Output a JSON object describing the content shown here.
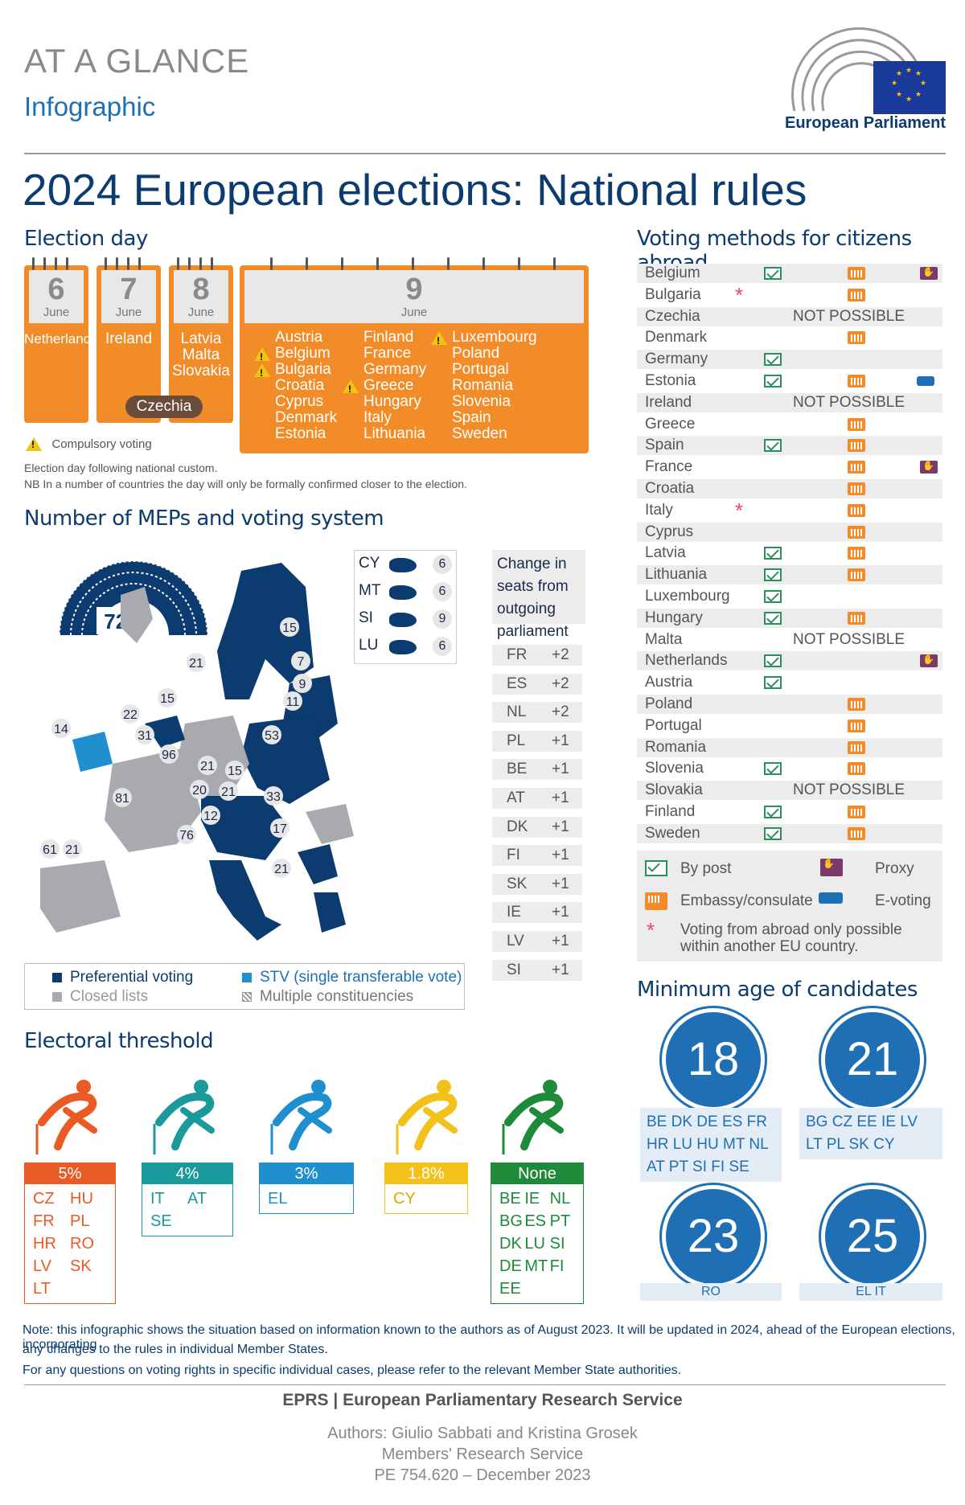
{
  "header": {
    "kicker": "AT A GLANCE",
    "subtitle": "Infographic",
    "logo_text": "European Parliament",
    "title": "2024 European elections: National rules"
  },
  "election_day": {
    "title": "Election day",
    "days": [
      {
        "day": "6",
        "month": "June",
        "countries": [
          "Netherlands"
        ]
      },
      {
        "day": "7",
        "month": "June",
        "countries": [
          "Ireland"
        ],
        "extra": "Czechia"
      },
      {
        "day": "8",
        "month": "June",
        "countries": [
          "Latvia",
          "Malta",
          "Slovakia"
        ]
      },
      {
        "day": "9",
        "month": "June",
        "col1": [
          "Austria",
          "Belgium",
          "Bulgaria",
          "Croatia",
          "Cyprus",
          "Denmark",
          "Estonia"
        ],
        "col2": [
          "Finland",
          "France",
          "Germany",
          "Greece",
          "Hungary",
          "Italy",
          "Lithuania"
        ],
        "col3": [
          "Luxembourg",
          "Poland",
          "Portugal",
          "Romania",
          "Slovenia",
          "Spain",
          "Sweden"
        ]
      }
    ],
    "legend_compulsory": "Compulsory voting",
    "note1": "Election day following national custom.",
    "note2": "NB In a number of countries the day will only be formally confirmed closer to the election."
  },
  "meps": {
    "title": "Number of MEPs and voting system",
    "total": "720",
    "map_numbers": [
      "15",
      "21",
      "7",
      "9",
      "11",
      "15",
      "22",
      "14",
      "31",
      "53",
      "96",
      "21",
      "15",
      "20",
      "21",
      "33",
      "81",
      "12",
      "17",
      "76",
      "21",
      "61",
      "21"
    ],
    "small_states": [
      {
        "code": "CY",
        "seats": "6"
      },
      {
        "code": "MT",
        "seats": "6"
      },
      {
        "code": "SI",
        "seats": "9"
      },
      {
        "code": "LU",
        "seats": "6"
      }
    ],
    "change_title": "Change in seats from outgoing parliament",
    "changes": [
      {
        "code": "FR",
        "delta": "+2"
      },
      {
        "code": "ES",
        "delta": "+2"
      },
      {
        "code": "NL",
        "delta": "+2"
      },
      {
        "code": "PL",
        "delta": "+1"
      },
      {
        "code": "BE",
        "delta": "+1"
      },
      {
        "code": "AT",
        "delta": "+1"
      },
      {
        "code": "DK",
        "delta": "+1"
      },
      {
        "code": "FI",
        "delta": "+1"
      },
      {
        "code": "SK",
        "delta": "+1"
      },
      {
        "code": "IE",
        "delta": "+1"
      },
      {
        "code": "LV",
        "delta": "+1"
      },
      {
        "code": "SI",
        "delta": "+1"
      }
    ],
    "legend": {
      "preferential": "Preferential voting",
      "closed": "Closed lists",
      "stv": "STV (single transferable vote)",
      "multiple": "Multiple constituencies"
    }
  },
  "abroad": {
    "title": "Voting methods for citizens abroad",
    "not_possible": "NOT POSSIBLE",
    "rows": [
      {
        "country": "Belgium",
        "post": true,
        "embassy": true,
        "proxy": true
      },
      {
        "country": "Bulgaria",
        "star": true,
        "embassy": true
      },
      {
        "country": "Czechia",
        "np": true
      },
      {
        "country": "Denmark",
        "embassy": true
      },
      {
        "country": "Germany",
        "post": true
      },
      {
        "country": "Estonia",
        "post": true,
        "embassy": true,
        "evote": true
      },
      {
        "country": "Ireland",
        "np": true
      },
      {
        "country": "Greece",
        "embassy": true
      },
      {
        "country": "Spain",
        "post": true,
        "embassy": true
      },
      {
        "country": "France",
        "embassy": true,
        "proxy": true
      },
      {
        "country": "Croatia",
        "embassy": true
      },
      {
        "country": "Italy",
        "star": true,
        "embassy": true
      },
      {
        "country": "Cyprus",
        "embassy": true
      },
      {
        "country": "Latvia",
        "post": true,
        "embassy": true
      },
      {
        "country": "Lithuania",
        "post": true,
        "embassy": true
      },
      {
        "country": "Luxembourg",
        "post": true
      },
      {
        "country": "Hungary",
        "post": true,
        "embassy": true
      },
      {
        "country": "Malta",
        "np": true
      },
      {
        "country": "Netherlands",
        "post": true,
        "proxy": true
      },
      {
        "country": "Austria",
        "post": true
      },
      {
        "country": "Poland",
        "embassy": true
      },
      {
        "country": "Portugal",
        "embassy": true
      },
      {
        "country": "Romania",
        "embassy": true
      },
      {
        "country": "Slovenia",
        "post": true,
        "embassy": true
      },
      {
        "country": "Slovakia",
        "np": true
      },
      {
        "country": "Finland",
        "post": true,
        "embassy": true
      },
      {
        "country": "Sweden",
        "post": true,
        "embassy": true
      }
    ],
    "legend": {
      "post": "By post",
      "proxy": "Proxy",
      "embassy": "Embassy/consulate",
      "evote": "E-voting",
      "star": "Voting from abroad only possible within another EU country."
    }
  },
  "threshold": {
    "title": "Electoral threshold",
    "groups": [
      {
        "label": "5%",
        "color": "#ea5a25",
        "items": [
          "CZ",
          "HU",
          "FR",
          "PL",
          "HR",
          "RO",
          "LV",
          "SK",
          "LT"
        ]
      },
      {
        "label": "4%",
        "color": "#1a9a9a",
        "items": [
          "IT",
          "AT",
          "SE"
        ]
      },
      {
        "label": "3%",
        "color": "#1f8fd0",
        "items": [
          "EL"
        ]
      },
      {
        "label": "1.8%",
        "color": "#f2c21a",
        "items": [
          "CY"
        ]
      },
      {
        "label": "None",
        "color": "#1f8a3a",
        "items": [
          "BE",
          "IE",
          "NL",
          "BG",
          "ES",
          "PT",
          "DK",
          "LU",
          "SI",
          "DE",
          "MT",
          "FI",
          "EE"
        ]
      }
    ]
  },
  "age": {
    "title": "Minimum age of candidates",
    "groups": [
      {
        "age": "18",
        "countries": "BE DK DE ES FR HR LU HU MT NL AT PT SI FI SE"
      },
      {
        "age": "21",
        "countries": "BG CZ EE IE LV LT PL SK CY"
      },
      {
        "age": "23",
        "countries": "RO"
      },
      {
        "age": "25",
        "countries": "EL IT"
      }
    ]
  },
  "footer": {
    "note1": "Note: this infographic shows the situation based on information known to the authors as of August 2023. It will be updated in 2024, ahead of the European elections, incorporating",
    "note2": "any changes to the rules in individual Member States.",
    "note3": "For any questions on voting rights in specific individual cases, please refer to the relevant Member State authorities.",
    "org": "EPRS | European Parliamentary Research Service",
    "authors": "Authors: Giulio Sabbati and Kristina Grosek",
    "service": "Members' Research Service",
    "ref": "PE 754.620 – December 2023"
  }
}
